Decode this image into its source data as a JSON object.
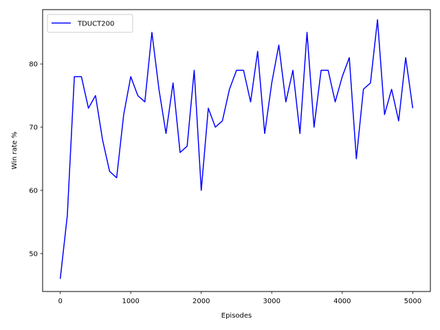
{
  "chart_data": {
    "type": "line",
    "title": "",
    "xlabel": "Episodes",
    "ylabel": "Win rate %",
    "xlim": [
      -250,
      5250
    ],
    "ylim": [
      44,
      88.6
    ],
    "xticks": [
      0,
      1000,
      2000,
      3000,
      4000,
      5000
    ],
    "yticks": [
      50,
      60,
      70,
      80
    ],
    "grid": false,
    "legend_position": "top-left",
    "series": [
      {
        "name": "TDUCT200",
        "color": "#0000ff",
        "x": [
          0,
          100,
          200,
          300,
          400,
          500,
          600,
          700,
          800,
          900,
          1000,
          1100,
          1200,
          1300,
          1400,
          1500,
          1600,
          1700,
          1800,
          1900,
          2000,
          2100,
          2200,
          2300,
          2400,
          2500,
          2600,
          2700,
          2800,
          2900,
          3000,
          3100,
          3200,
          3300,
          3400,
          3500,
          3600,
          3700,
          3800,
          3900,
          4000,
          4100,
          4200,
          4300,
          4400,
          4500,
          4600,
          4700,
          4800,
          4900,
          5000
        ],
        "y": [
          46,
          56,
          78,
          78,
          73,
          75,
          68,
          63,
          62,
          72,
          78,
          75,
          74,
          85,
          76,
          69,
          77,
          66,
          67,
          79,
          60,
          73,
          70,
          71,
          76,
          79,
          79,
          74,
          82,
          69,
          77,
          83,
          74,
          79,
          69,
          85,
          70,
          79,
          79,
          74,
          78,
          81,
          65,
          76,
          77,
          87,
          72,
          76,
          71,
          81,
          73
        ]
      }
    ]
  }
}
